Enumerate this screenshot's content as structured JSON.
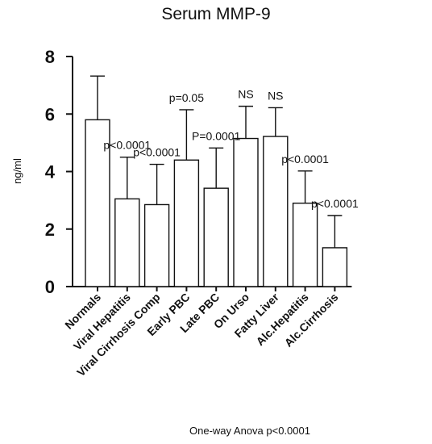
{
  "chart_data": {
    "type": "bar",
    "title": "Serum MMP-9",
    "ylabel": "ng/ml",
    "xlabel": "",
    "ylim": [
      0,
      8
    ],
    "yticks": [
      0,
      2,
      4,
      6,
      8
    ],
    "categories": [
      "Normals",
      "Viral Hepatitis",
      "Viral Cirrhosis Comp",
      "Early PBC",
      "Late PBC",
      "On Urso",
      "Fatty Liver",
      "Alc.Hepatitis",
      "Alc.Cirrhosis"
    ],
    "values": [
      5.8,
      3.05,
      2.85,
      4.4,
      3.42,
      5.15,
      5.22,
      2.9,
      1.35
    ],
    "errors": [
      1.52,
      1.45,
      1.4,
      1.75,
      1.4,
      1.12,
      1.0,
      1.12,
      1.12
    ],
    "annotations": [
      "",
      "p<0.0001",
      "p<0.0001",
      "p=0.05",
      "P=0.0001",
      "NS",
      "NS",
      "p<0.0001",
      "p<0.0001"
    ],
    "footer": "One-way Anova p<0.0001",
    "grid": false,
    "legend": "none"
  }
}
